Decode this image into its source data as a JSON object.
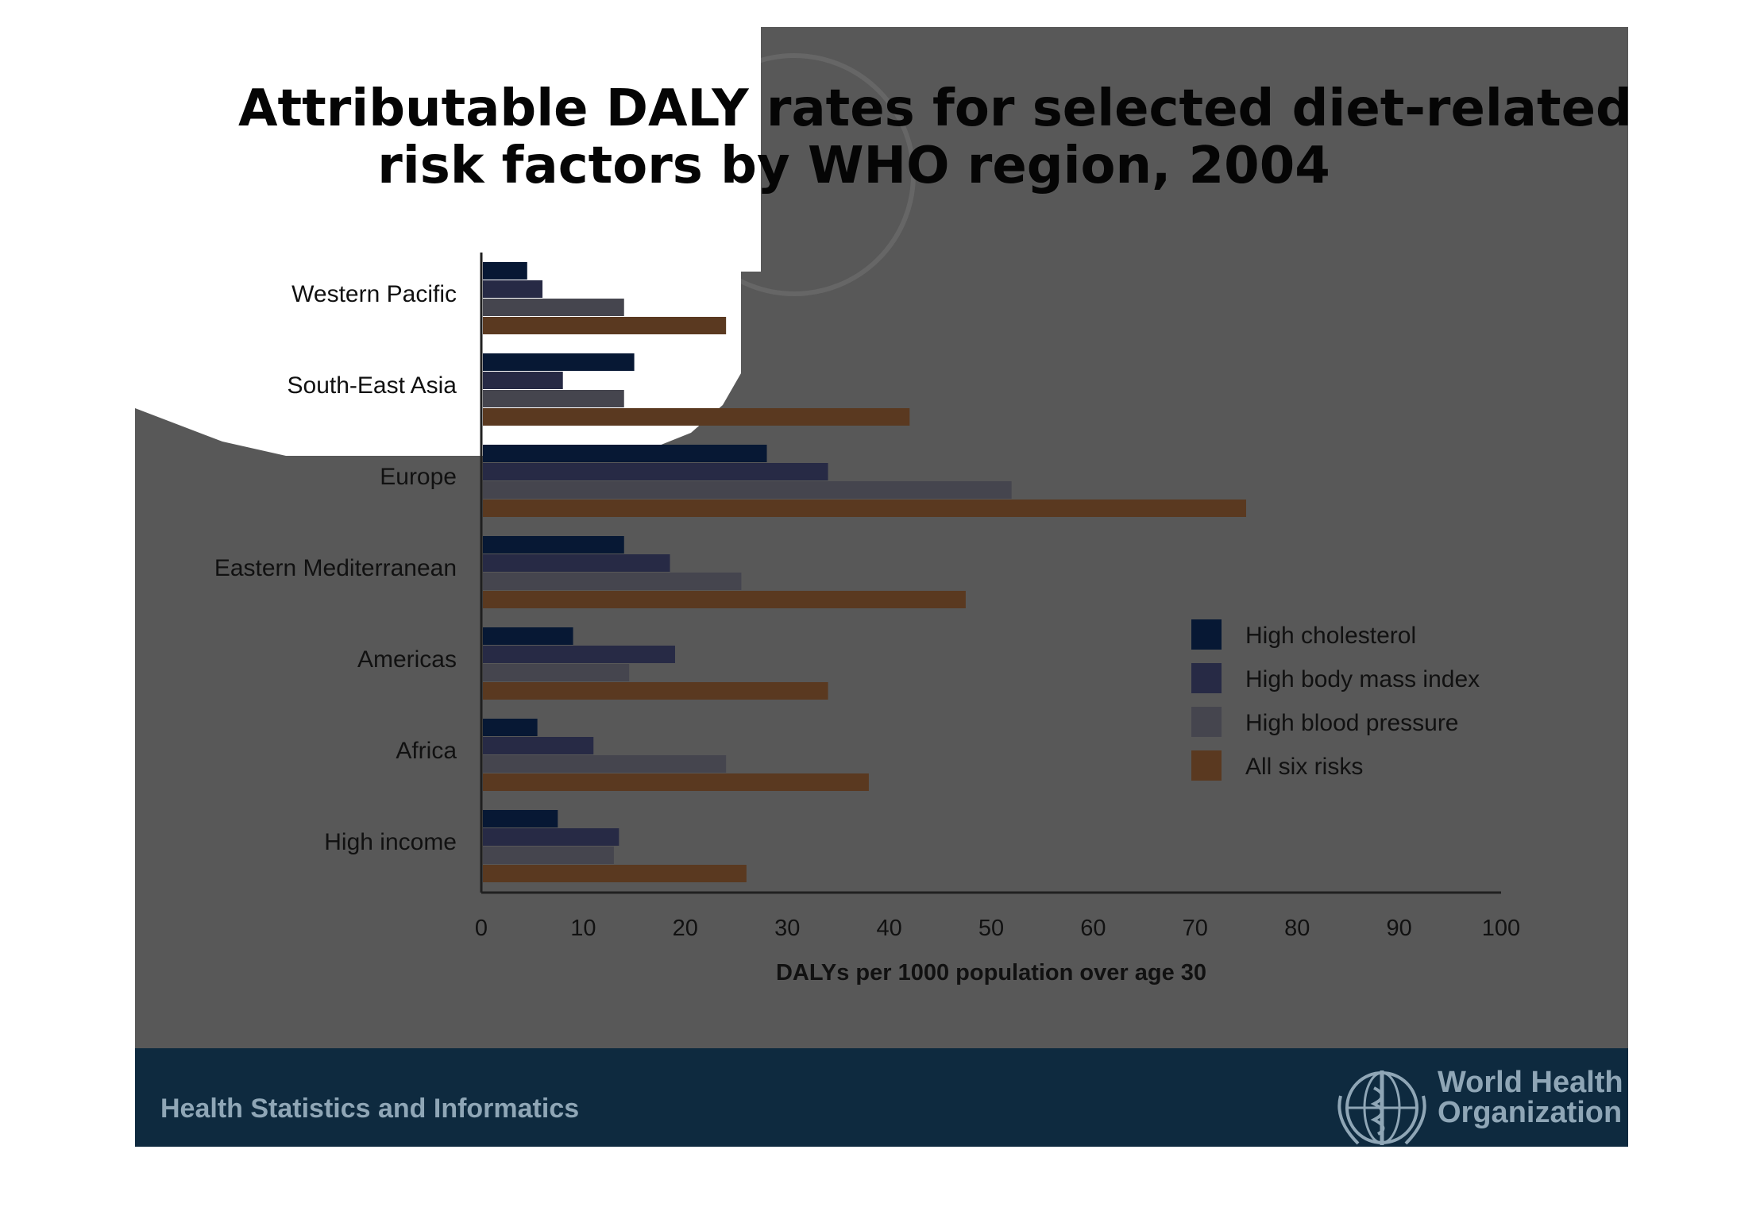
{
  "slide": {
    "title_line_1": "Attributable DALY rates for selected diet-related",
    "title_line_2": "risk factors by WHO region, 2004",
    "footer": "Health Statistics and Informatics",
    "organization_line_1": "World Health",
    "organization_line_2": "Organization"
  },
  "colors": {
    "slide_background": "#585858",
    "footer_band": "#0e2a3f",
    "axis": "#202020",
    "label_text": "#111111"
  },
  "chart_data": {
    "type": "bar",
    "orientation": "horizontal",
    "categories": [
      "Western Pacific",
      "South-East Asia",
      "Europe",
      "Eastern Mediterranean",
      "Americas",
      "Africa",
      "High income"
    ],
    "series": [
      {
        "name": "High cholesterol",
        "color": "#071834",
        "values": [
          4.5,
          15,
          28,
          14,
          9,
          5.5,
          7.5
        ]
      },
      {
        "name": "High body mass index",
        "color": "#272a45",
        "values": [
          6,
          8,
          34,
          18.5,
          19,
          11,
          13.5
        ]
      },
      {
        "name": "High blood pressure",
        "color": "#45454e",
        "values": [
          14,
          14,
          52,
          25.5,
          14.5,
          24,
          13
        ]
      },
      {
        "name": "All six risks",
        "color": "#5a3920",
        "values": [
          24,
          42,
          75,
          47.5,
          34,
          38,
          26
        ]
      }
    ],
    "xlabel": "DALYs per 1000 population over age 30",
    "xlim": [
      0,
      100
    ],
    "xticks": [
      "0",
      "10",
      "20",
      "30",
      "40",
      "50",
      "60",
      "70",
      "80",
      "90",
      "100"
    ],
    "legend_position": "right",
    "grid": false
  }
}
